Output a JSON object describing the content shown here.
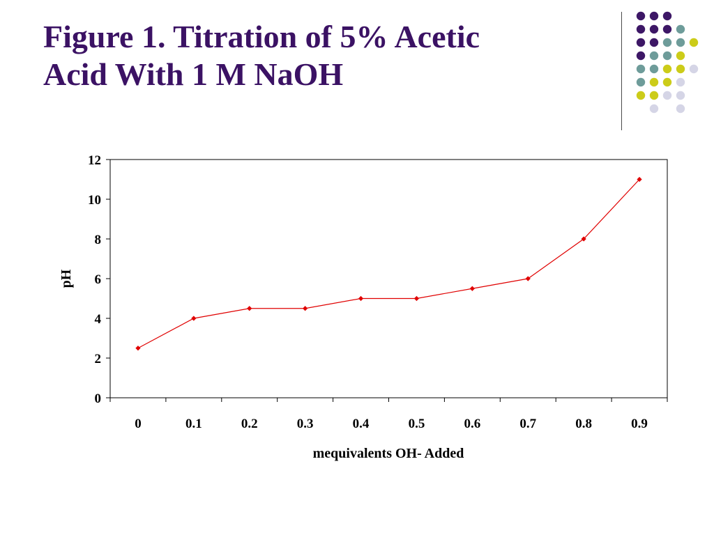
{
  "slide": {
    "title_lines": [
      "Figure 1.  Titration of 5% Acetic",
      "Acid With 1 M NaOH"
    ]
  },
  "decoration": {
    "dot_colors": {
      "purple": "#3d1766",
      "teal": "#6e9c9a",
      "yellow": "#cccc19",
      "lavender": "#d5d5e6"
    },
    "dot_grid": [
      [
        "purple",
        "purple",
        "purple",
        null,
        null
      ],
      [
        "purple",
        "purple",
        "purple",
        "teal",
        null
      ],
      [
        "purple",
        "purple",
        "teal",
        "teal",
        "yellow"
      ],
      [
        "purple",
        "teal",
        "teal",
        "yellow",
        null
      ],
      [
        "teal",
        "teal",
        "yellow",
        "yellow",
        "lavender"
      ],
      [
        "teal",
        "yellow",
        "yellow",
        "lavender",
        null
      ],
      [
        "yellow",
        "yellow",
        "lavender",
        "lavender",
        null
      ],
      [
        null,
        "lavender",
        null,
        "lavender",
        null
      ]
    ]
  },
  "chart_data": {
    "type": "line",
    "title": "",
    "xlabel": "mequivalents OH- Added",
    "ylabel": "pH",
    "categories": [
      "0",
      "0.1",
      "0.2",
      "0.3",
      "0.4",
      "0.5",
      "0.6",
      "0.7",
      "0.8",
      "0.9"
    ],
    "series": [
      {
        "values": [
          2.5,
          4,
          4.5,
          4.5,
          5,
          5,
          5.5,
          6,
          8,
          11
        ],
        "color": "#e00000"
      }
    ],
    "ylim": [
      0,
      12
    ],
    "yticks": [
      0,
      2,
      4,
      6,
      8,
      10,
      12
    ],
    "grid": false,
    "legend": "none",
    "marker": "diamond"
  }
}
